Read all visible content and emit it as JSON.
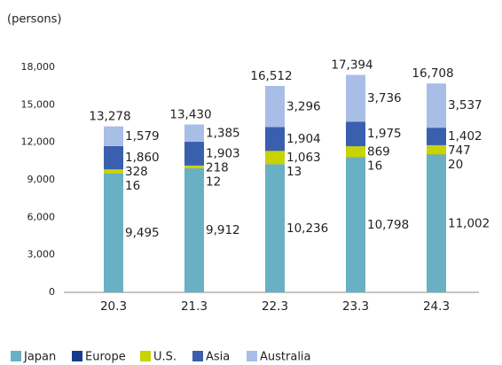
{
  "chart_data": {
    "type": "stacked_bar",
    "unit_label": "(persons)",
    "categories": [
      "20.3",
      "21.3",
      "22.3",
      "23.3",
      "24.3"
    ],
    "series": [
      {
        "name": "Japan",
        "color": "#6ab0c4",
        "values": [
          9495,
          9912,
          10236,
          10798,
          11002
        ],
        "value_labels": [
          "9,495",
          "9,912",
          "10,236",
          "10,798",
          "11,002"
        ]
      },
      {
        "name": "Europe",
        "color": "#143c8c",
        "values": [
          16,
          12,
          13,
          16,
          20
        ]
      },
      {
        "name": "U.S.",
        "color": "#c8d400",
        "values": [
          328,
          218,
          1063,
          869,
          747
        ],
        "value_labels": [
          "328",
          "218",
          "1,063",
          "869",
          "747"
        ]
      },
      {
        "name": "Asia",
        "color": "#3a5faf",
        "values": [
          1860,
          1903,
          1904,
          1975,
          1402
        ],
        "value_labels": [
          "1,860",
          "1,903",
          "1,904",
          "1,975",
          "1,402"
        ]
      },
      {
        "name": "Australia",
        "color": "#a8bee6",
        "values": [
          1579,
          1385,
          3296,
          3736,
          3537
        ],
        "value_labels": [
          "1,579",
          "1,385",
          "3,296",
          "3,736",
          "3,537"
        ]
      }
    ],
    "totals": [
      13278,
      13430,
      16512,
      17394,
      16708
    ],
    "total_labels": [
      "13,278",
      "13,430",
      "16,512",
      "17,394",
      "16,708"
    ],
    "ylim": [
      0,
      18000
    ],
    "yticks": [
      0,
      {
        "value": 3000,
        "label": "3,000"
      },
      {
        "value": 6000,
        "label": "6,000"
      },
      {
        "value": 9000,
        "label": "9,000"
      },
      {
        "value": 12000,
        "label": "12,000"
      },
      {
        "value": 15000,
        "label": "15,000"
      },
      {
        "value": 18000,
        "label": "18,000"
      }
    ],
    "grid": false
  }
}
